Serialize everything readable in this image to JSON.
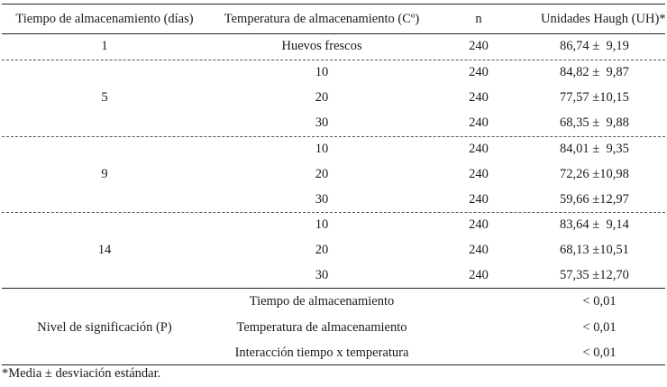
{
  "headers": {
    "storage_days": "Tiempo de almacenamiento (días)",
    "storage_temp": "Temperatura de almacenamiento (Cº)",
    "n": "n",
    "haugh": "Unidades Haugh (UH)*"
  },
  "groups": [
    {
      "day": "1",
      "rows": [
        {
          "temp": "Huevos frescos",
          "n": "240",
          "uh": "86,74 ±  9,19"
        }
      ]
    },
    {
      "day": "5",
      "rows": [
        {
          "temp": "10",
          "n": "240",
          "uh": "84,82 ±  9,87"
        },
        {
          "temp": "20",
          "n": "240",
          "uh": "77,57 ±10,15"
        },
        {
          "temp": "30",
          "n": "240",
          "uh": "68,35 ±  9,88"
        }
      ]
    },
    {
      "day": "9",
      "rows": [
        {
          "temp": "10",
          "n": "240",
          "uh": "84,01 ±  9,35"
        },
        {
          "temp": "20",
          "n": "240",
          "uh": "72,26 ±10,98"
        },
        {
          "temp": "30",
          "n": "240",
          "uh": "59,66 ±12,97"
        }
      ]
    },
    {
      "day": "14",
      "rows": [
        {
          "temp": "10",
          "n": "240",
          "uh": "83,64 ±  9,14"
        },
        {
          "temp": "20",
          "n": "240",
          "uh": "68,13 ±10,51"
        },
        {
          "temp": "30",
          "n": "240",
          "uh": "57,35 ±12,70"
        }
      ]
    }
  ],
  "significance": {
    "label": "Nivel de significación (P)",
    "rows": [
      {
        "factor": "Tiempo de almacenamiento",
        "p": "< 0,01"
      },
      {
        "factor": "Temperatura de almacenamiento",
        "p": "< 0,01"
      },
      {
        "factor": "Interacción tiempo x temperatura",
        "p": "< 0,01"
      }
    ]
  },
  "footnote": "*Media ± desviación estándar."
}
